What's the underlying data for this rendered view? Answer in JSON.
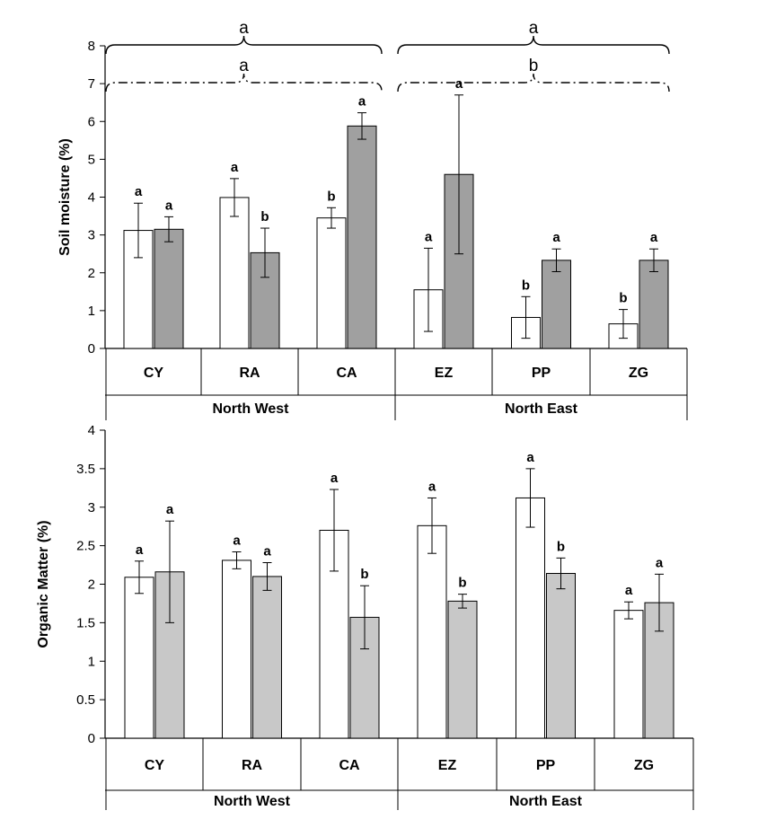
{
  "chart_data": [
    {
      "type": "bar",
      "ylabel": "Soil moisture (%)",
      "ylim": [
        0,
        8
      ],
      "yticks": [
        "0",
        "1",
        "2",
        "3",
        "4",
        "5",
        "6",
        "7",
        "8"
      ],
      "categories": [
        "CY",
        "RA",
        "CA",
        "EZ",
        "PP",
        "ZG"
      ],
      "groups": [
        {
          "label": "North West",
          "categories": [
            "CY",
            "RA",
            "CA"
          ]
        },
        {
          "label": "North East",
          "categories": [
            "EZ",
            "PP",
            "ZG"
          ]
        }
      ],
      "series": [
        {
          "color": "#ffffff",
          "values": [
            3.12,
            3.99,
            3.45,
            1.55,
            0.82,
            0.65
          ],
          "errors": [
            0.72,
            0.5,
            0.27,
            1.1,
            0.55,
            0.38
          ],
          "letters": [
            "a",
            "a",
            "b",
            "a",
            "b",
            "b"
          ]
        },
        {
          "color": "#a0a0a0",
          "values": [
            3.15,
            2.53,
            5.88,
            4.6,
            2.33,
            2.33
          ],
          "errors": [
            0.33,
            0.65,
            0.35,
            2.1,
            0.3,
            0.3
          ],
          "letters": [
            "a",
            "b",
            "a",
            "a",
            "a",
            "a"
          ]
        }
      ],
      "group_annotations": [
        {
          "group": "North West",
          "solid_brace_letter": "a",
          "dashed_brace_letter": "a"
        },
        {
          "group": "North East",
          "solid_brace_letter": "a",
          "dashed_brace_letter": "b"
        }
      ]
    },
    {
      "type": "bar",
      "ylabel": "Organic Matter  (%)",
      "ylim": [
        0,
        4
      ],
      "yticks": [
        "0",
        "0.5",
        "1",
        "1.5",
        "2",
        "2.5",
        "3",
        "3.5",
        "4"
      ],
      "categories": [
        "CY",
        "RA",
        "CA",
        "EZ",
        "PP",
        "ZG"
      ],
      "groups": [
        {
          "label": "North West",
          "categories": [
            "CY",
            "RA",
            "CA"
          ]
        },
        {
          "label": "North East",
          "categories": [
            "EZ",
            "PP",
            "ZG"
          ]
        }
      ],
      "series": [
        {
          "color": "#ffffff",
          "values": [
            2.09,
            2.31,
            2.7,
            2.76,
            3.12,
            1.66
          ],
          "errors": [
            0.21,
            0.11,
            0.53,
            0.36,
            0.38,
            0.11
          ],
          "letters": [
            "a",
            "a",
            "a",
            "a",
            "a",
            "a"
          ]
        },
        {
          "color": "#c8c8c8",
          "values": [
            2.16,
            2.1,
            1.57,
            1.78,
            2.14,
            1.76
          ],
          "errors": [
            0.66,
            0.18,
            0.41,
            0.09,
            0.2,
            0.37
          ],
          "letters": [
            "a",
            "a",
            "b",
            "b",
            "b",
            "a"
          ]
        }
      ]
    }
  ]
}
